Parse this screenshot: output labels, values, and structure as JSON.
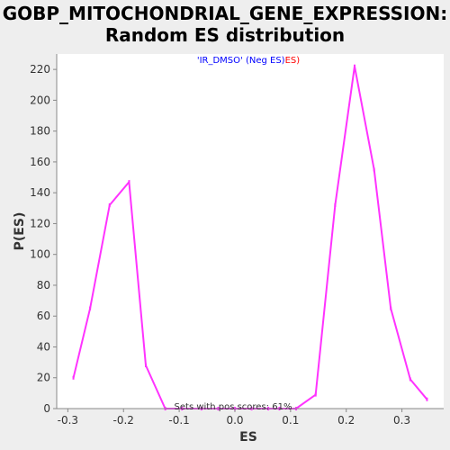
{
  "chart_data": {
    "type": "line",
    "title_line1": "GOBP_MITOCHONDRIAL_GENE_EXPRESSION:",
    "title_line2": "Random ES distribution",
    "xlabel": "ES",
    "ylabel": "P(ES)",
    "xlim": [
      -0.32,
      0.375
    ],
    "ylim": [
      0,
      230
    ],
    "xticks": [
      -0.3,
      -0.2,
      -0.1,
      0.0,
      0.1,
      0.2,
      0.3
    ],
    "xtick_labels": [
      "-0.3",
      "-0.2",
      "-0.1",
      "0.0",
      "0.1",
      "0.2",
      "0.3"
    ],
    "yticks": [
      0,
      20,
      40,
      60,
      80,
      100,
      120,
      140,
      160,
      180,
      200,
      220
    ],
    "grid": false,
    "legend": {
      "placement": "top-center",
      "parts": [
        {
          "text": "'IR_DMSO' (Neg ES)",
          "color": "#0000ff"
        },
        {
          "text": "ES)",
          "color": "#ff0000"
        }
      ]
    },
    "annotation": "Sets with pos scores: 61%",
    "series": [
      {
        "color": "#ff33ff",
        "points": [
          [
            -0.29,
            20
          ],
          [
            -0.26,
            65
          ],
          [
            -0.225,
            132
          ],
          [
            -0.19,
            147
          ],
          [
            -0.16,
            28
          ],
          [
            -0.125,
            0
          ],
          [
            -0.095,
            0
          ],
          [
            -0.06,
            0
          ],
          [
            -0.03,
            0
          ],
          [
            0.0,
            0
          ],
          [
            0.03,
            0
          ],
          [
            0.06,
            0
          ],
          [
            0.08,
            0
          ],
          [
            0.11,
            0
          ],
          [
            0.145,
            9
          ],
          [
            0.18,
            132
          ],
          [
            0.215,
            222
          ],
          [
            0.25,
            155
          ],
          [
            0.28,
            65
          ],
          [
            0.315,
            19
          ],
          [
            0.345,
            6
          ]
        ]
      }
    ]
  }
}
